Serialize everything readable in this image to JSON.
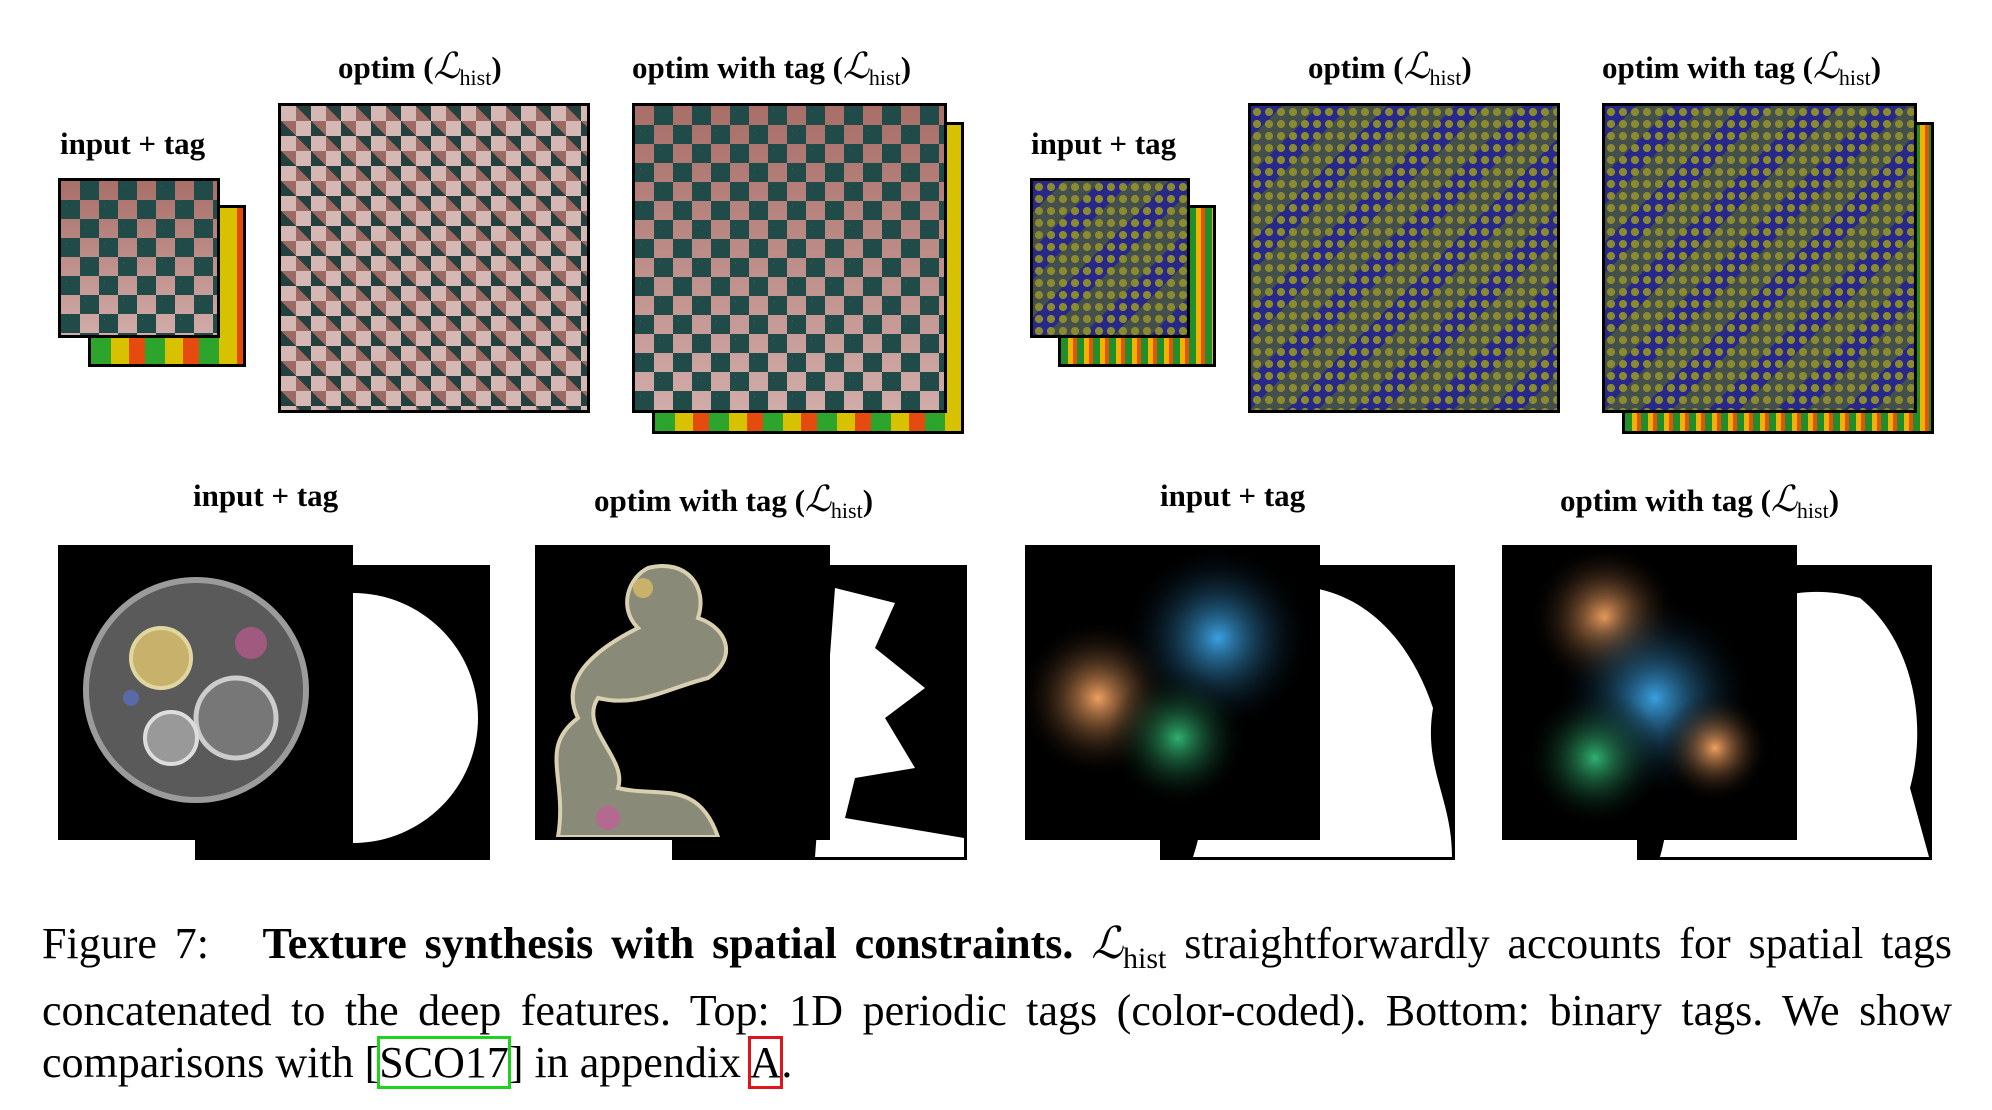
{
  "labels": {
    "input_tag": "input + tag",
    "optim": "optim",
    "optim_with_tag": "optim with tag",
    "loss_symbol": "ℒ",
    "loss_sub": "hist"
  },
  "caption": {
    "fig_label": "Figure 7:",
    "bold_title": "Texture synthesis with spatial constraints.",
    "loss_symbol": "ℒ",
    "loss_sub": "hist",
    "text_1": "straightforwardly accounts for spatial tags concatenated to the deep features. Top: 1D periodic tags (color-coded). Bottom: binary tags. We show comparisons with [",
    "cite_1": "SCO17",
    "text_2": "] in appendix ",
    "cite_2": "A",
    "text_3": "."
  }
}
